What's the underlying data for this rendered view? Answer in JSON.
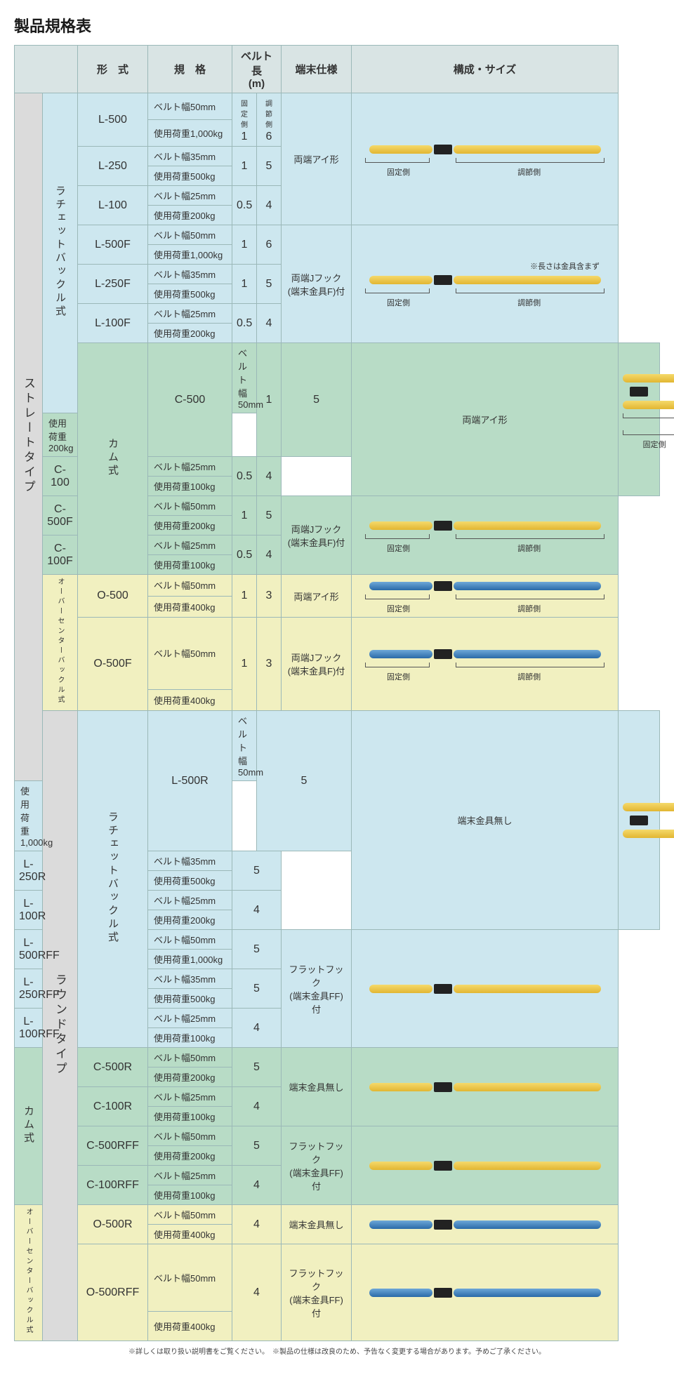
{
  "title": "製品規格表",
  "headers": {
    "model": "形　式",
    "spec": "規　格",
    "beltlen": "ベルト長\n(m)",
    "endspec": "端末仕様",
    "config": "構成・サイズ",
    "fixed": "固定側",
    "adjust": "調節側"
  },
  "bracket_labels": {
    "fixed": "固定側",
    "adjust": "調節側"
  },
  "note_metal": "※長さは金具含まず",
  "footnote": "※詳しくは取り扱い説明書をご覧ください。　※製品の仕様は改良のため、予告なく変更する場合があります。予めご了承ください。",
  "type_groups": [
    {
      "key": "straight",
      "label": "ストレートタイプ",
      "bg": "bg-gray"
    },
    {
      "key": "round",
      "label": "ラウンドタイプ",
      "bg": "bg-gray"
    }
  ],
  "buckle_groups": {
    "ratchet": "ラチェットバックル式",
    "cam": "カム式",
    "overcenter": "オーバーセンターバックル式"
  },
  "end_types": {
    "eye": "両端アイ形",
    "jhook": "両端Jフック\n(端末金具F)付",
    "none": "端末金具無し",
    "flat": "フラットフック\n(端末金具FF)付"
  },
  "straight": [
    {
      "grp": "ratchet",
      "bg": "bg-blue",
      "model": "L-500",
      "spec1": "ベルト幅50mm",
      "spec2": "使用荷重1,000kg",
      "l1": "1",
      "l2": "6",
      "end": "eye",
      "img": {
        "color": "yellow",
        "brackets": true
      }
    },
    {
      "grp": "ratchet",
      "bg": "bg-blue",
      "model": "L-250",
      "spec1": "ベルト幅35mm",
      "spec2": "使用荷重500kg",
      "l1": "1",
      "l2": "5",
      "end": "eye"
    },
    {
      "grp": "ratchet",
      "bg": "bg-blue",
      "model": "L-100",
      "spec1": "ベルト幅25mm",
      "spec2": "使用荷重200kg",
      "l1": "0.5",
      "l2": "4",
      "end": "eye"
    },
    {
      "grp": "ratchet",
      "bg": "bg-blue",
      "model": "L-500F",
      "spec1": "ベルト幅50mm",
      "spec2": "使用荷重1,000kg",
      "l1": "1",
      "l2": "6",
      "end": "jhook",
      "img": {
        "color": "yellow",
        "brackets": true,
        "note": true
      }
    },
    {
      "grp": "ratchet",
      "bg": "bg-blue",
      "model": "L-250F",
      "spec1": "ベルト幅35mm",
      "spec2": "使用荷重500kg",
      "l1": "1",
      "l2": "5",
      "end": "jhook"
    },
    {
      "grp": "ratchet",
      "bg": "bg-blue",
      "model": "L-100F",
      "spec1": "ベルト幅25mm",
      "spec2": "使用荷重200kg",
      "l1": "0.5",
      "l2": "4",
      "end": "jhook"
    },
    {
      "grp": "cam",
      "bg": "bg-green",
      "model": "C-500",
      "spec1": "ベルト幅50mm",
      "spec2": "使用荷重200kg",
      "l1": "1",
      "l2": "5",
      "end": "eye",
      "img": {
        "color": "yellow",
        "brackets": true
      }
    },
    {
      "grp": "cam",
      "bg": "bg-green",
      "model": "C-100",
      "spec1": "ベルト幅25mm",
      "spec2": "使用荷重100kg",
      "l1": "0.5",
      "l2": "4",
      "end": "eye"
    },
    {
      "grp": "cam",
      "bg": "bg-green",
      "model": "C-500F",
      "spec1": "ベルト幅50mm",
      "spec2": "使用荷重200kg",
      "l1": "1",
      "l2": "5",
      "end": "jhook",
      "img": {
        "color": "yellow",
        "brackets": true
      }
    },
    {
      "grp": "cam",
      "bg": "bg-green",
      "model": "C-100F",
      "spec1": "ベルト幅25mm",
      "spec2": "使用荷重100kg",
      "l1": "0.5",
      "l2": "4",
      "end": "jhook"
    },
    {
      "grp": "overcenter",
      "bg": "bg-yellow",
      "model": "O-500",
      "spec1": "ベルト幅50mm",
      "spec2": "使用荷重400kg",
      "l1": "1",
      "l2": "3",
      "end": "eye",
      "img": {
        "color": "blue",
        "brackets": true
      }
    },
    {
      "grp": "overcenter",
      "bg": "bg-yellow",
      "model": "O-500F",
      "spec1": "ベルト幅50mm",
      "spec2": "使用荷重400kg",
      "l1": "1",
      "l2": "3",
      "end": "jhook",
      "img": {
        "color": "blue",
        "brackets": true
      }
    }
  ],
  "round": [
    {
      "grp": "ratchet",
      "bg": "bg-blue",
      "model": "L-500R",
      "spec1": "ベルト幅50mm",
      "spec2": "使用荷重1,000kg",
      "l": "5",
      "end": "none",
      "img": {
        "color": "yellow"
      }
    },
    {
      "grp": "ratchet",
      "bg": "bg-blue",
      "model": "L-250R",
      "spec1": "ベルト幅35mm",
      "spec2": "使用荷重500kg",
      "l": "5",
      "end": "none"
    },
    {
      "grp": "ratchet",
      "bg": "bg-blue",
      "model": "L-100R",
      "spec1": "ベルト幅25mm",
      "spec2": "使用荷重200kg",
      "l": "4",
      "end": "none"
    },
    {
      "grp": "ratchet",
      "bg": "bg-blue",
      "model": "L-500RFF",
      "spec1": "ベルト幅50mm",
      "spec2": "使用荷重1,000kg",
      "l": "5",
      "end": "flat",
      "img": {
        "color": "yellow"
      }
    },
    {
      "grp": "ratchet",
      "bg": "bg-blue",
      "model": "L-250RFF",
      "spec1": "ベルト幅35mm",
      "spec2": "使用荷重500kg",
      "l": "5",
      "end": "flat"
    },
    {
      "grp": "ratchet",
      "bg": "bg-blue",
      "model": "L-100RFF",
      "spec1": "ベルト幅25mm",
      "spec2": "使用荷重100kg",
      "l": "4",
      "end": "flat"
    },
    {
      "grp": "cam",
      "bg": "bg-green",
      "model": "C-500R",
      "spec1": "ベルト幅50mm",
      "spec2": "使用荷重200kg",
      "l": "5",
      "end": "none",
      "img": {
        "color": "yellow"
      }
    },
    {
      "grp": "cam",
      "bg": "bg-green",
      "model": "C-100R",
      "spec1": "ベルト幅25mm",
      "spec2": "使用荷重100kg",
      "l": "4",
      "end": "none"
    },
    {
      "grp": "cam",
      "bg": "bg-green",
      "model": "C-500RFF",
      "spec1": "ベルト幅50mm",
      "spec2": "使用荷重200kg",
      "l": "5",
      "end": "flat",
      "img": {
        "color": "yellow"
      }
    },
    {
      "grp": "cam",
      "bg": "bg-green",
      "model": "C-100RFF",
      "spec1": "ベルト幅25mm",
      "spec2": "使用荷重100kg",
      "l": "4",
      "end": "flat"
    },
    {
      "grp": "overcenter",
      "bg": "bg-yellow",
      "model": "O-500R",
      "spec1": "ベルト幅50mm",
      "spec2": "使用荷重400kg",
      "l": "4",
      "end": "none",
      "img": {
        "color": "blue"
      }
    },
    {
      "grp": "overcenter",
      "bg": "bg-yellow",
      "model": "O-500RFF",
      "spec1": "ベルト幅50mm",
      "spec2": "使用荷重400kg",
      "l": "4",
      "end": "flat",
      "img": {
        "color": "blue"
      }
    }
  ]
}
